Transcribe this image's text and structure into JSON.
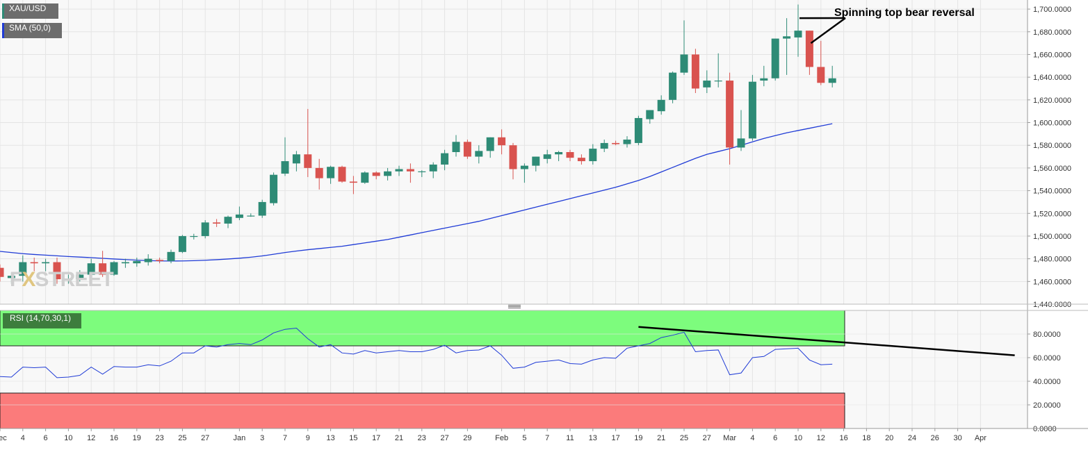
{
  "legend": {
    "main": "XAU/USD",
    "sma": "SMA (50,0)",
    "rsi": "RSI (14,70,30,1)"
  },
  "watermark": {
    "part1": "F",
    "part2": "X",
    "part3": "STREET"
  },
  "annotation": "Spinning top bear reversal",
  "colors": {
    "up": "#2e8b76",
    "down": "#d9534f",
    "sma": "#1f3bd6",
    "rsi_line": "#1f3bd6",
    "overbought_zone": "#7dfc7d",
    "oversold_zone": "#fb7b7b",
    "grid": "#e4e4e4",
    "axis_text": "#333333"
  },
  "x_axis_labels": [
    {
      "i": 0,
      "label": "Dec"
    },
    {
      "i": 2,
      "label": "4"
    },
    {
      "i": 4,
      "label": "6"
    },
    {
      "i": 6,
      "label": "10"
    },
    {
      "i": 8,
      "label": "12"
    },
    {
      "i": 10,
      "label": "16"
    },
    {
      "i": 12,
      "label": "19"
    },
    {
      "i": 14,
      "label": "23"
    },
    {
      "i": 16,
      "label": "25"
    },
    {
      "i": 18,
      "label": "27"
    },
    {
      "i": 21,
      "label": "Jan"
    },
    {
      "i": 23,
      "label": "3"
    },
    {
      "i": 25,
      "label": "7"
    },
    {
      "i": 27,
      "label": "9"
    },
    {
      "i": 29,
      "label": "13"
    },
    {
      "i": 31,
      "label": "15"
    },
    {
      "i": 33,
      "label": "17"
    },
    {
      "i": 35,
      "label": "21"
    },
    {
      "i": 37,
      "label": "23"
    },
    {
      "i": 39,
      "label": "27"
    },
    {
      "i": 41,
      "label": "29"
    },
    {
      "i": 44,
      "label": "Feb"
    },
    {
      "i": 46,
      "label": "5"
    },
    {
      "i": 48,
      "label": "7"
    },
    {
      "i": 50,
      "label": "11"
    },
    {
      "i": 52,
      "label": "13"
    },
    {
      "i": 54,
      "label": "17"
    },
    {
      "i": 56,
      "label": "19"
    },
    {
      "i": 58,
      "label": "21"
    },
    {
      "i": 60,
      "label": "25"
    },
    {
      "i": 62,
      "label": "27"
    },
    {
      "i": 64,
      "label": "Mar"
    },
    {
      "i": 66,
      "label": "4"
    },
    {
      "i": 68,
      "label": "6"
    },
    {
      "i": 70,
      "label": "10"
    },
    {
      "i": 72,
      "label": "12"
    },
    {
      "i": 74,
      "label": "16"
    },
    {
      "i": 76,
      "label": "18"
    },
    {
      "i": 78,
      "label": "20"
    },
    {
      "i": 80,
      "label": "24"
    },
    {
      "i": 82,
      "label": "26"
    },
    {
      "i": 84,
      "label": "30"
    },
    {
      "i": 86,
      "label": "Apr"
    }
  ],
  "chart_data": [
    {
      "type": "candlestick",
      "title": "XAU/USD",
      "ylim": [
        1440,
        1708
      ],
      "y_ticks": [
        "1,440.0000",
        "1,460.0000",
        "1,480.0000",
        "1,500.0000",
        "1,520.0000",
        "1,540.0000",
        "1,560.0000",
        "1,580.0000",
        "1,600.0000",
        "1,620.0000",
        "1,640.0000",
        "1,660.0000",
        "1,680.0000",
        "1,700.0000"
      ],
      "y_tick_values": [
        1440,
        1460,
        1480,
        1500,
        1520,
        1540,
        1560,
        1580,
        1600,
        1620,
        1640,
        1660,
        1680,
        1700
      ],
      "ohlc": [
        [
          1472,
          1475,
          1460,
          1464
        ],
        [
          1463,
          1468,
          1458,
          1465
        ],
        [
          1465,
          1483,
          1460,
          1477
        ],
        [
          1477,
          1481,
          1469,
          1476
        ],
        [
          1476,
          1480,
          1469,
          1477
        ],
        [
          1477,
          1481,
          1458,
          1462
        ],
        [
          1462,
          1466,
          1458,
          1462
        ],
        [
          1462,
          1470,
          1460,
          1466
        ],
        [
          1466,
          1480,
          1463,
          1476
        ],
        [
          1476,
          1487,
          1464,
          1466
        ],
        [
          1466,
          1478,
          1465,
          1477
        ],
        [
          1476,
          1480,
          1472,
          1477
        ],
        [
          1476,
          1481,
          1473,
          1478
        ],
        [
          1477,
          1484,
          1474,
          1480
        ],
        [
          1479,
          1481,
          1476,
          1478
        ],
        [
          1478,
          1488,
          1476,
          1486
        ],
        [
          1486,
          1501,
          1485,
          1500
        ],
        [
          1500,
          1502,
          1497,
          1500
        ],
        [
          1500,
          1514,
          1498,
          1512
        ],
        [
          1512,
          1515,
          1508,
          1511
        ],
        [
          1511,
          1518,
          1507,
          1517
        ],
        [
          1516,
          1526,
          1514,
          1519
        ],
        [
          1518,
          1520,
          1517,
          1518
        ],
        [
          1518,
          1532,
          1516,
          1530
        ],
        [
          1529,
          1556,
          1527,
          1554
        ],
        [
          1555,
          1587,
          1553,
          1566
        ],
        [
          1564,
          1575,
          1557,
          1572
        ],
        [
          1572,
          1612,
          1552,
          1560
        ],
        [
          1560,
          1568,
          1541,
          1551
        ],
        [
          1551,
          1562,
          1546,
          1561
        ],
        [
          1561,
          1562,
          1547,
          1548
        ],
        [
          1548,
          1553,
          1537,
          1547
        ],
        [
          1547,
          1557,
          1546,
          1556
        ],
        [
          1556,
          1557,
          1550,
          1553
        ],
        [
          1553,
          1560,
          1549,
          1557
        ],
        [
          1557,
          1562,
          1553,
          1559
        ],
        [
          1559,
          1564,
          1547,
          1557
        ],
        [
          1557,
          1558,
          1552,
          1557
        ],
        [
          1557,
          1565,
          1551,
          1563
        ],
        [
          1563,
          1576,
          1558,
          1573
        ],
        [
          1574,
          1589,
          1570,
          1583
        ],
        [
          1583,
          1585,
          1568,
          1570
        ],
        [
          1570,
          1580,
          1564,
          1575
        ],
        [
          1575,
          1587,
          1569,
          1587
        ],
        [
          1587,
          1594,
          1572,
          1580
        ],
        [
          1580,
          1582,
          1550,
          1559
        ],
        [
          1559,
          1564,
          1547,
          1562
        ],
        [
          1562,
          1570,
          1557,
          1570
        ],
        [
          1568,
          1576,
          1564,
          1572
        ],
        [
          1572,
          1575,
          1566,
          1574
        ],
        [
          1574,
          1576,
          1566,
          1569
        ],
        [
          1569,
          1572,
          1563,
          1566
        ],
        [
          1566,
          1581,
          1563,
          1577
        ],
        [
          1577,
          1585,
          1574,
          1582
        ],
        [
          1582,
          1584,
          1580,
          1581
        ],
        [
          1581,
          1588,
          1578,
          1585
        ],
        [
          1582,
          1606,
          1580,
          1604
        ],
        [
          1603,
          1611,
          1599,
          1611
        ],
        [
          1610,
          1624,
          1607,
          1620
        ],
        [
          1620,
          1645,
          1617,
          1644
        ],
        [
          1644,
          1690,
          1642,
          1660
        ],
        [
          1660,
          1665,
          1626,
          1630
        ],
        [
          1631,
          1646,
          1626,
          1637
        ],
        [
          1637,
          1661,
          1631,
          1637
        ],
        [
          1637,
          1644,
          1563,
          1578
        ],
        [
          1578,
          1611,
          1575,
          1586
        ],
        [
          1586,
          1642,
          1584,
          1636
        ],
        [
          1637,
          1650,
          1632,
          1639
        ],
        [
          1639,
          1674,
          1637,
          1674
        ],
        [
          1674,
          1692,
          1642,
          1676
        ],
        [
          1675,
          1704,
          1658,
          1681
        ],
        [
          1681,
          1681,
          1642,
          1649
        ],
        [
          1649,
          1672,
          1633,
          1635
        ],
        [
          1635,
          1650,
          1631,
          1639
        ]
      ],
      "sma": [
        1486.5,
        1485.5,
        1484.5,
        1483.8,
        1483.2,
        1482.6,
        1482,
        1481.5,
        1481,
        1480.4,
        1479.8,
        1479.3,
        1478.8,
        1478.4,
        1478.1,
        1478,
        1478.1,
        1478.3,
        1478.7,
        1479.2,
        1479.8,
        1480.5,
        1481.4,
        1482.5,
        1484,
        1485.5,
        1486.8,
        1488,
        1489,
        1490,
        1491,
        1492.5,
        1494,
        1495.5,
        1497,
        1499,
        1501,
        1503,
        1505,
        1507,
        1509,
        1511,
        1513,
        1515.5,
        1518,
        1520.5,
        1523,
        1525.5,
        1528,
        1530.5,
        1533,
        1535.5,
        1538,
        1540.5,
        1543,
        1546,
        1549,
        1552.5,
        1556.5,
        1560.5,
        1564.5,
        1568.5,
        1572,
        1574.5,
        1577,
        1580,
        1583,
        1586,
        1588.5,
        1591,
        1593,
        1595,
        1597,
        1599
      ],
      "sma_name": "SMA (50,0)"
    },
    {
      "type": "line",
      "title": "RSI (14,70,30,1)",
      "ylim": [
        0,
        100
      ],
      "y_ticks": [
        "0.0000",
        "20.0000",
        "40.0000",
        "60.0000",
        "80.0000"
      ],
      "y_tick_values": [
        0,
        20,
        40,
        60,
        80
      ],
      "overbought": 70,
      "oversold": 30,
      "values": [
        44,
        43.5,
        52,
        51.5,
        52,
        43,
        43.5,
        45,
        52,
        46,
        52.5,
        52,
        52,
        54,
        53,
        57,
        64,
        64,
        70,
        69,
        71,
        72,
        71,
        75,
        81,
        84,
        85,
        76,
        69,
        71,
        64,
        63,
        66,
        64,
        65,
        66,
        65,
        65,
        67,
        70.5,
        64,
        66,
        66.5,
        70,
        62,
        51,
        52,
        56,
        57,
        58,
        55,
        54.5,
        58,
        60,
        59.5,
        68,
        70,
        72,
        77,
        79,
        81.5,
        65,
        66,
        66.5,
        45.5,
        47,
        60,
        61,
        67,
        67.5,
        68,
        58,
        54,
        54.5
      ],
      "trendline": [
        [
          56,
          86
        ],
        [
          89,
          62
        ]
      ]
    }
  ]
}
